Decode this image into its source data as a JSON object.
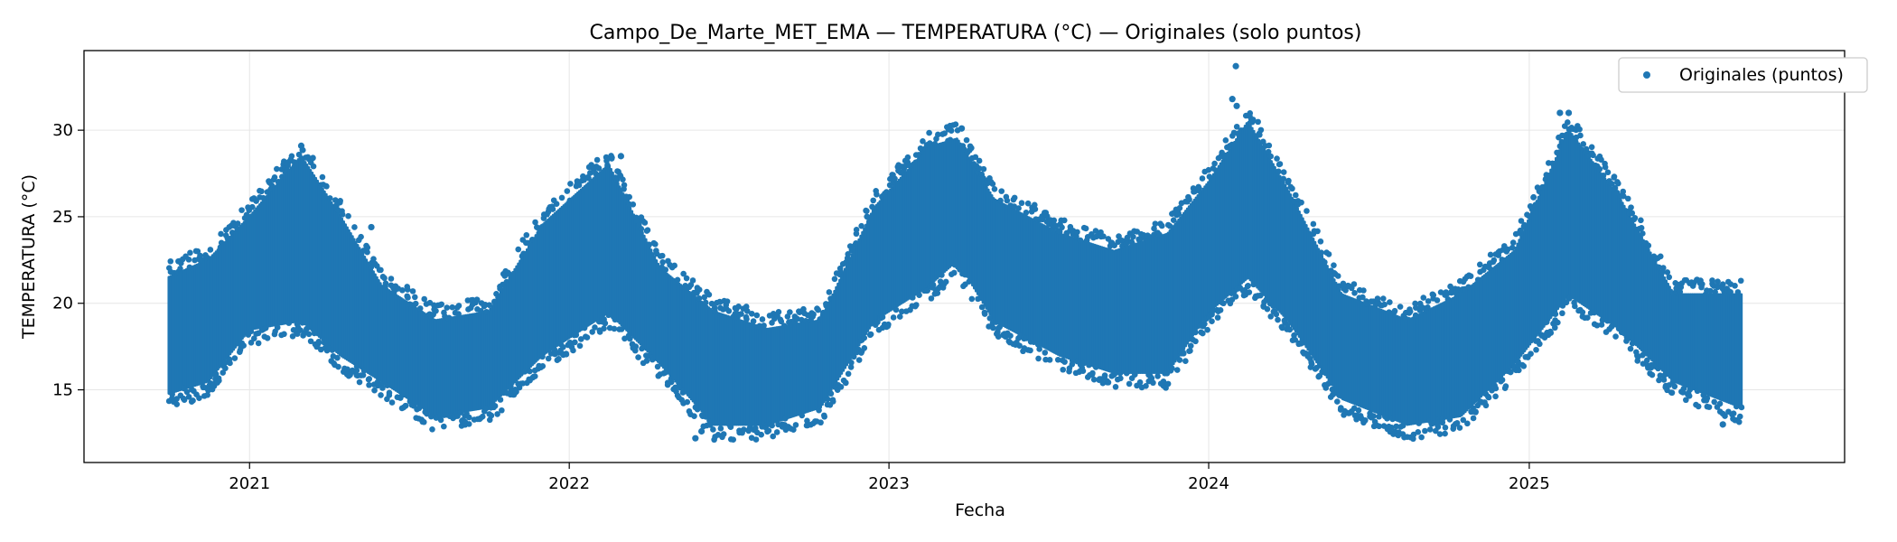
{
  "chart_data": {
    "type": "scatter",
    "title": "Campo_De_Marte_MET_EMA — TEMPERATURA (°C) — Originales (solo puntos)",
    "xlabel": "Fecha",
    "ylabel": "TEMPERATURA (°C)",
    "xlim": [
      "2020-06-26",
      "2025-12-27"
    ],
    "ylim": [
      10.8,
      34.6
    ],
    "x_ticks": [
      "2021",
      "2022",
      "2023",
      "2024",
      "2025"
    ],
    "y_ticks": [
      15,
      20,
      25,
      30
    ],
    "grid": true,
    "legend": {
      "position": "top-right",
      "entries": [
        "Originales (puntos)"
      ]
    },
    "colors": {
      "series": "#1f77b4"
    },
    "series": [
      {
        "name": "Originales (puntos)",
        "envelope": {
          "x": [
            "2020-10-01",
            "2020-11-15",
            "2021-01-01",
            "2021-03-01",
            "2021-04-15",
            "2021-06-01",
            "2021-08-01",
            "2021-10-01",
            "2021-12-01",
            "2022-02-15",
            "2022-04-15",
            "2022-06-15",
            "2022-08-15",
            "2022-10-15",
            "2022-12-15",
            "2023-02-15",
            "2023-03-20",
            "2023-05-01",
            "2023-07-15",
            "2023-09-15",
            "2023-11-15",
            "2024-01-01",
            "2024-02-15",
            "2024-04-01",
            "2024-06-01",
            "2024-08-15",
            "2024-10-15",
            "2024-12-15",
            "2025-02-15",
            "2025-04-15",
            "2025-06-15",
            "2025-08-31"
          ],
          "low": [
            14.8,
            15.5,
            18.5,
            19.0,
            17.0,
            15.5,
            13.5,
            14.0,
            17.0,
            19.5,
            16.5,
            13.0,
            13.0,
            14.0,
            19.0,
            21.0,
            22.5,
            19.0,
            17.0,
            16.0,
            16.0,
            19.5,
            21.5,
            19.0,
            14.5,
            13.0,
            13.5,
            16.5,
            20.5,
            18.5,
            15.5,
            14.0
          ],
          "high": [
            21.5,
            22.5,
            25.0,
            28.5,
            25.0,
            21.0,
            19.0,
            19.5,
            24.5,
            28.0,
            22.0,
            19.5,
            18.5,
            19.0,
            25.5,
            29.0,
            29.5,
            26.0,
            24.0,
            23.0,
            24.0,
            27.0,
            30.5,
            26.5,
            20.5,
            19.0,
            20.5,
            23.0,
            30.0,
            26.0,
            20.5,
            20.5
          ]
        },
        "extremes": [
          {
            "x": "2024-02-01",
            "y": 33.7
          },
          {
            "x": "2024-01-28",
            "y": 31.8
          },
          {
            "x": "2024-02-02",
            "y": 31.4
          },
          {
            "x": "2025-02-15",
            "y": 31.0
          },
          {
            "x": "2025-02-05",
            "y": 31.0
          },
          {
            "x": "2023-03-25",
            "y": 30.1
          },
          {
            "x": "2021-03-01",
            "y": 29.1
          },
          {
            "x": "2022-03-01",
            "y": 28.5
          },
          {
            "x": "2021-05-20",
            "y": 24.4
          },
          {
            "x": "2025-08-10",
            "y": 13.0
          },
          {
            "x": "2022-05-25",
            "y": 12.2
          },
          {
            "x": "2022-06-01",
            "y": 12.6
          }
        ]
      }
    ]
  }
}
